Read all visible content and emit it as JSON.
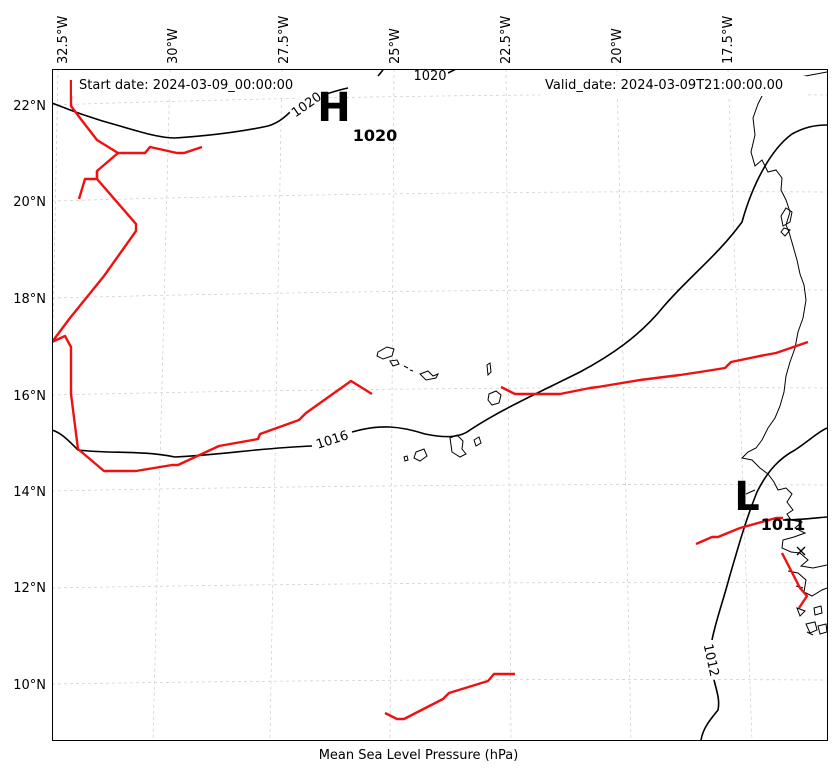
{
  "header": {
    "start_label": "Start date: 2024-03-09_00:00:00",
    "valid_label": "Valid_date: 2024-03-09T21:00:00.00"
  },
  "xlabel": "Mean Sea Level Pressure (hPa)",
  "lon_labels": [
    "32.5°W",
    "30°W",
    "27.5°W",
    "25°W",
    "22.5°W",
    "20°W",
    "17.5°W"
  ],
  "lat_labels": [
    "22°N",
    "20°N",
    "18°N",
    "16°N",
    "14°N",
    "12°N",
    "10°N"
  ],
  "isobar_labels": [
    {
      "text": "1020",
      "rot": -35
    },
    {
      "text": "1020",
      "rot": 0
    },
    {
      "text": "1016",
      "rot": -18
    },
    {
      "text": "1012",
      "rot": 78
    }
  ],
  "pressure_centers": [
    {
      "symbol": "H",
      "value": "1020"
    },
    {
      "symbol": "L",
      "value": "1011"
    }
  ],
  "colors": {
    "isobar": "#000000",
    "front": "#ee1111",
    "grid": "#cccccc"
  }
}
